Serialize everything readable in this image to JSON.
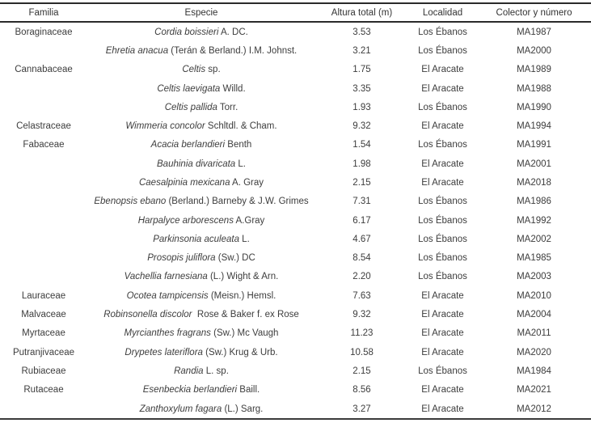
{
  "table": {
    "columns": [
      {
        "key": "familia",
        "label": "Familia"
      },
      {
        "key": "especie",
        "label": "Especie"
      },
      {
        "key": "altura",
        "label": "Altura total (m)"
      },
      {
        "key": "localidad",
        "label": "Localidad"
      },
      {
        "key": "colector",
        "label": "Colector y número"
      }
    ],
    "rows": [
      {
        "familia": "Boraginaceae",
        "especie_italic": "Cordia boissieri",
        "especie_rest": " A. DC.",
        "altura": "3.53",
        "localidad": "Los Ébanos",
        "colector": "MA1987"
      },
      {
        "familia": "",
        "especie_italic": "Ehretia anacua",
        "especie_rest": " (Terán & Berland.) I.M. Johnst.",
        "altura": "3.21",
        "localidad": "Los Ébanos",
        "colector": "MA2000"
      },
      {
        "familia": "Cannabaceae",
        "especie_italic": "Celtis",
        "especie_rest": " sp.",
        "altura": "1.75",
        "localidad": "El Aracate",
        "colector": "MA1989"
      },
      {
        "familia": "",
        "especie_italic": "Celtis laevigata",
        "especie_rest": " Willd.",
        "altura": "3.35",
        "localidad": "El Aracate",
        "colector": "MA1988"
      },
      {
        "familia": "",
        "especie_italic": "Celtis pallida",
        "especie_rest": " Torr.",
        "altura": "1.93",
        "localidad": "Los Ébanos",
        "colector": "MA1990"
      },
      {
        "familia": "Celastraceae",
        "especie_italic": "Wimmeria concolor",
        "especie_rest": " Schltdl. & Cham.",
        "altura": "9.32",
        "localidad": "El Aracate",
        "colector": "MA1994"
      },
      {
        "familia": "Fabaceae",
        "especie_italic": "Acacia berlandieri",
        "especie_rest": " Benth",
        "altura": "1.54",
        "localidad": "Los Ébanos",
        "colector": "MA1991"
      },
      {
        "familia": "",
        "especie_italic": "Bauhinia divaricata",
        "especie_rest": " L.",
        "altura": "1.98",
        "localidad": "El Aracate",
        "colector": "MA2001"
      },
      {
        "familia": "",
        "especie_italic": "Caesalpinia mexicana",
        "especie_rest": " A. Gray",
        "altura": "2.15",
        "localidad": "El Aracate",
        "colector": "MA2018"
      },
      {
        "familia": "",
        "especie_italic": "Ebenopsis ebano",
        "especie_rest": " (Berland.) Barneby & J.W. Grimes",
        "altura": "7.31",
        "localidad": "Los Ébanos",
        "colector": "MA1986"
      },
      {
        "familia": "",
        "especie_italic": "Harpalyce arborescens",
        "especie_rest": " A.Gray",
        "altura": "6.17",
        "localidad": "Los Ébanos",
        "colector": "MA1992"
      },
      {
        "familia": "",
        "especie_italic": "Parkinsonia aculeata",
        "especie_rest": " L.",
        "altura": "4.67",
        "localidad": "Los Ébanos",
        "colector": "MA2002"
      },
      {
        "familia": "",
        "especie_italic": "Prosopis juliflora",
        "especie_rest": " (Sw.) DC",
        "altura": "8.54",
        "localidad": "Los Ébanos",
        "colector": "MA1985"
      },
      {
        "familia": "",
        "especie_italic": "Vachellia farnesiana",
        "especie_rest": " (L.) Wight & Arn.",
        "altura": "2.20",
        "localidad": "Los Ébanos",
        "colector": "MA2003"
      },
      {
        "familia": "Lauraceae",
        "especie_italic": "Ocotea tampicensis",
        "especie_rest": " (Meisn.) Hemsl.",
        "altura": "7.63",
        "localidad": "El Aracate",
        "colector": "MA2010"
      },
      {
        "familia": "Malvaceae",
        "especie_italic": "Robinsonella discolor",
        "especie_rest": "  Rose & Baker f. ex Rose",
        "altura": "9.32",
        "localidad": "El Aracate",
        "colector": "MA2004"
      },
      {
        "familia": "Myrtaceae",
        "especie_italic": "Myrcianthes fragrans",
        "especie_rest": " (Sw.) Mc Vaugh",
        "altura": "11.23",
        "localidad": "El Aracate",
        "colector": "MA2011"
      },
      {
        "familia": "Putranjivaceae",
        "especie_italic": "Drypetes lateriflora",
        "especie_rest": " (Sw.) Krug & Urb.",
        "altura": "10.58",
        "localidad": "El Aracate",
        "colector": "MA2020"
      },
      {
        "familia": "Rubiaceae",
        "especie_italic": "Randia",
        "especie_rest": " L. sp.",
        "altura": "2.15",
        "localidad": "Los Ébanos",
        "colector": "MA1984"
      },
      {
        "familia": "Rutaceae",
        "especie_italic": "Esenbeckia berlandieri",
        "especie_rest": " Baill.",
        "altura": "8.56",
        "localidad": "El Aracate",
        "colector": "MA2021"
      },
      {
        "familia": "",
        "especie_italic": "Zanthoxylum fagara",
        "especie_rest": " (L.) Sarg.",
        "altura": "3.27",
        "localidad": "El Aracate",
        "colector": "MA2012"
      }
    ]
  }
}
